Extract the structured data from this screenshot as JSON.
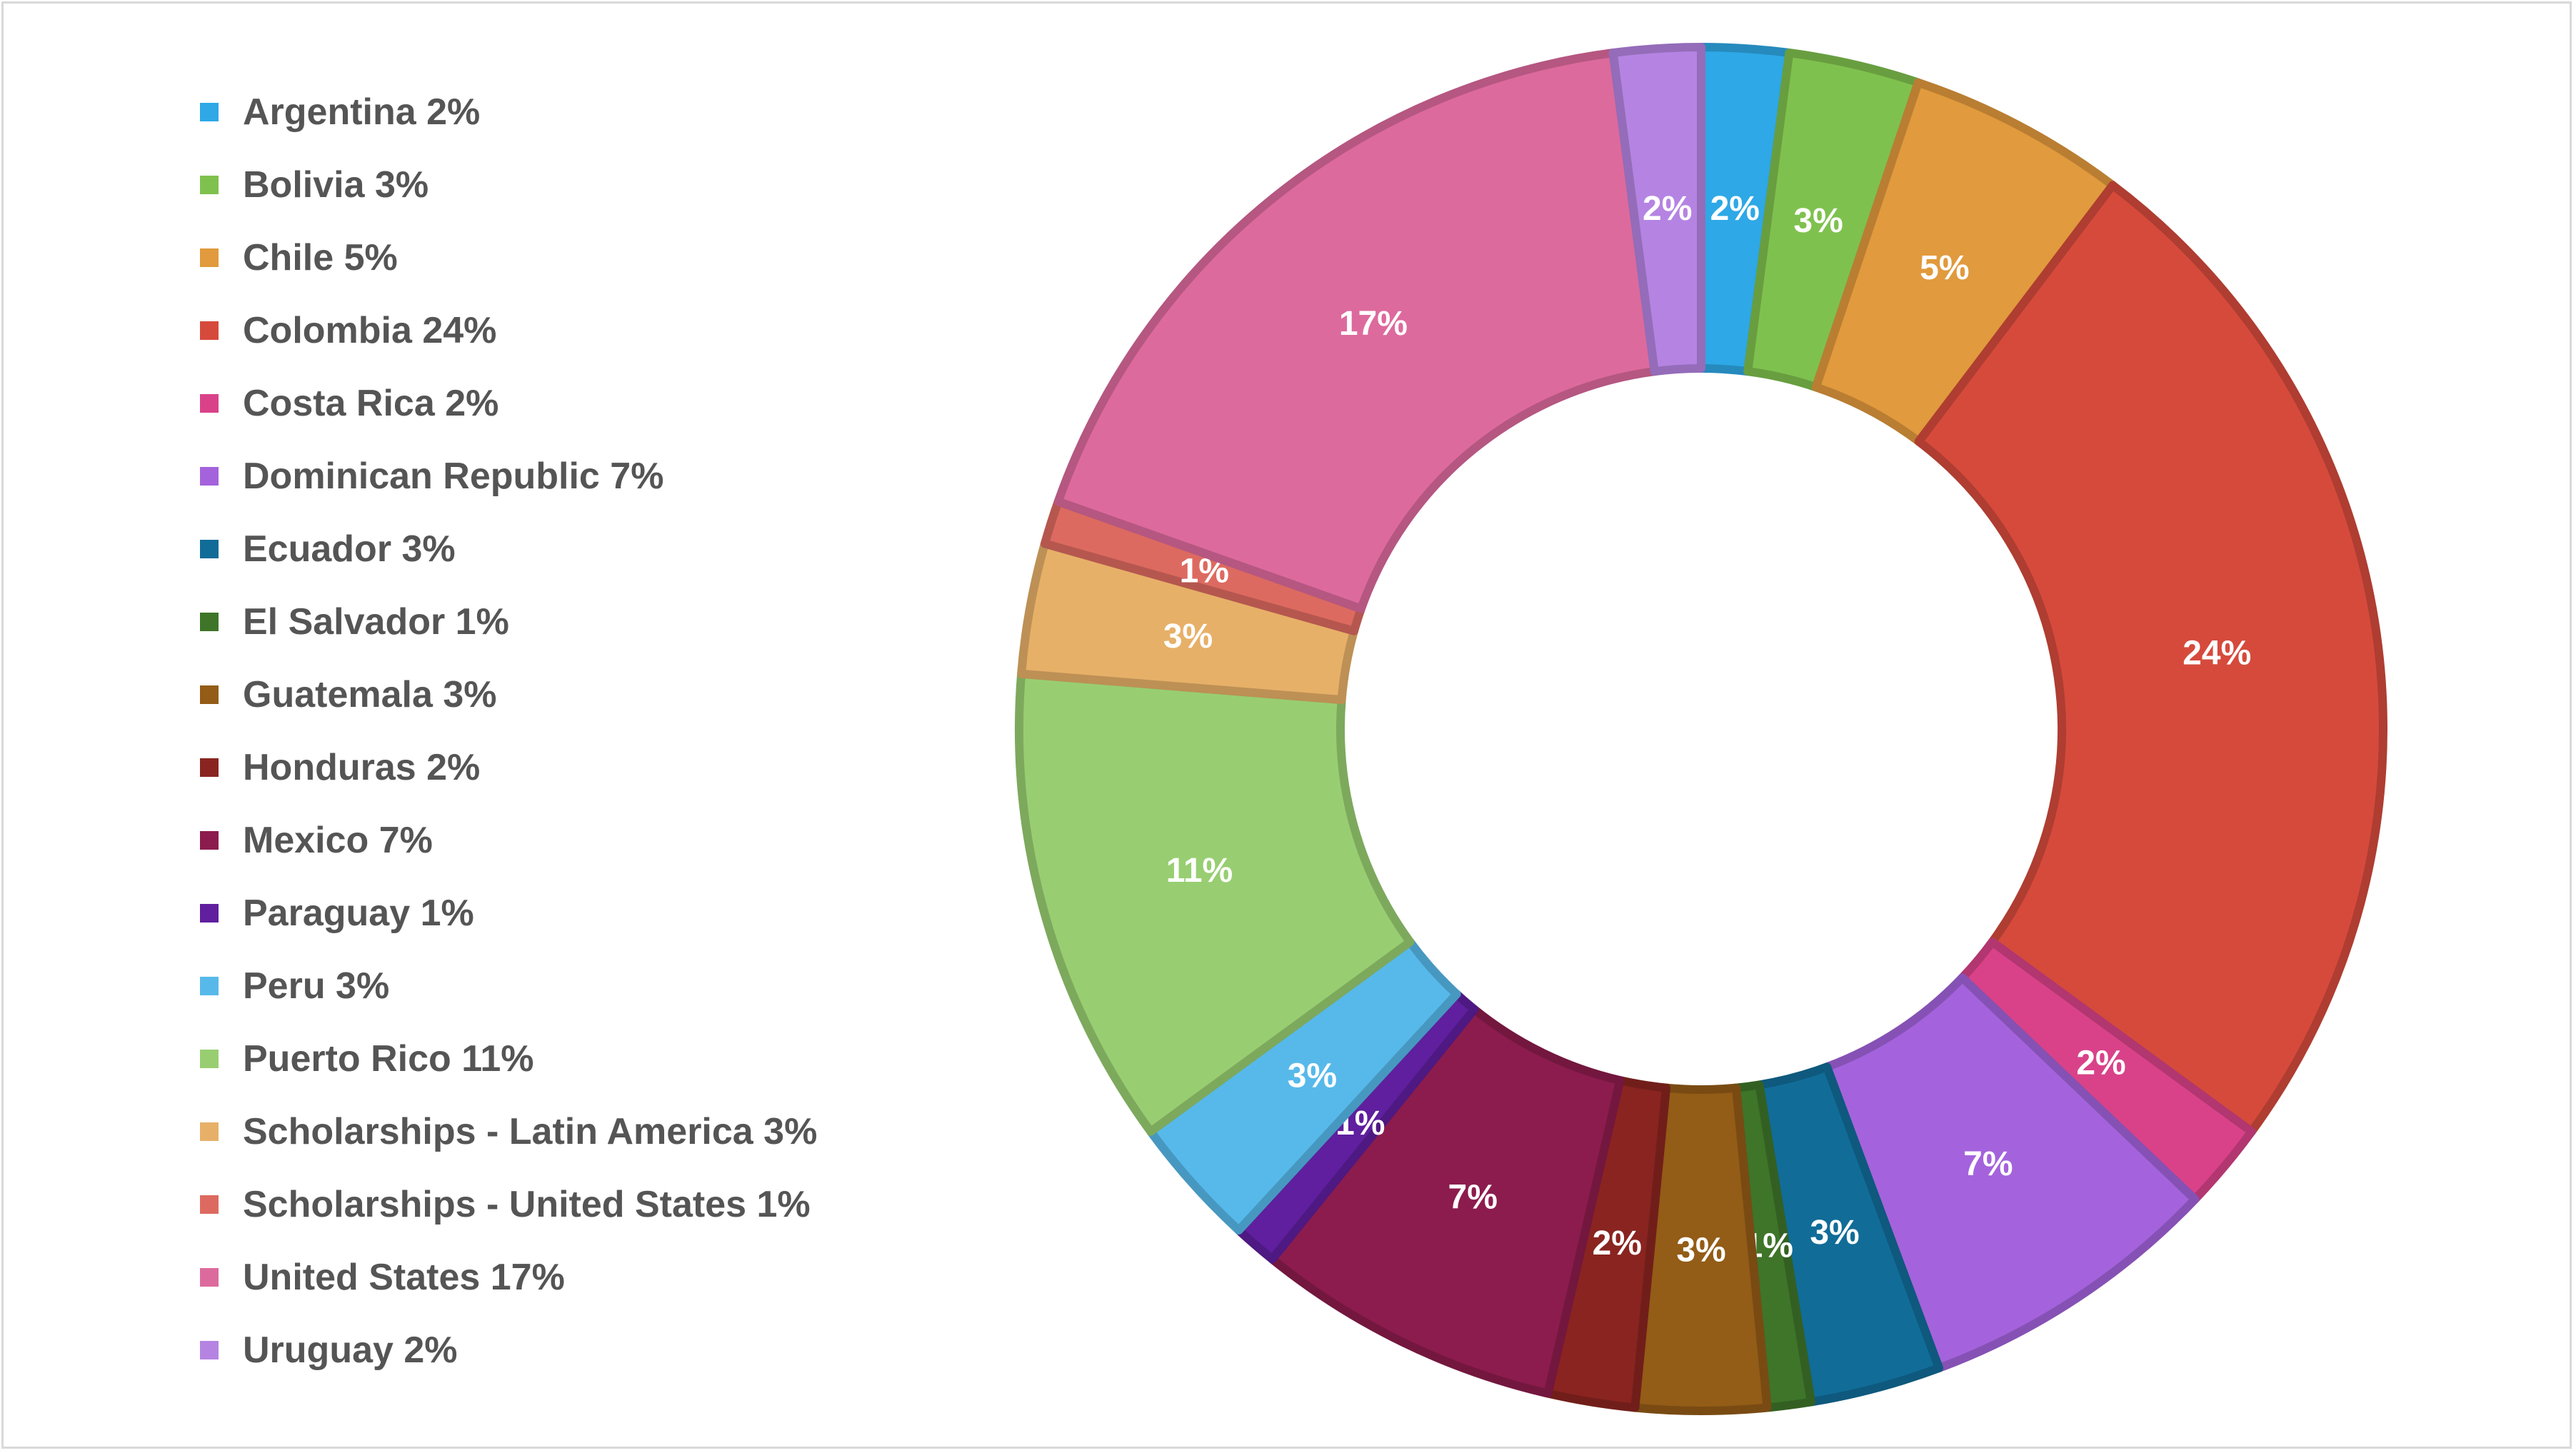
{
  "chart_data": {
    "type": "pie",
    "donut": true,
    "legend_position": "left",
    "slices": [
      {
        "label": "Argentina",
        "value": 2,
        "text": "2%",
        "color": "#2ea8e6"
      },
      {
        "label": "Bolivia",
        "value": 3,
        "text": "3%",
        "color": "#7fc14e"
      },
      {
        "label": "Chile",
        "value": 5,
        "text": "5%",
        "color": "#e19a3d"
      },
      {
        "label": "Colombia",
        "value": 24,
        "text": "24%",
        "color": "#d64a3c"
      },
      {
        "label": "Costa Rica",
        "value": 2,
        "text": "2%",
        "color": "#d94289"
      },
      {
        "label": "Dominican Republic",
        "value": 7,
        "text": "7%",
        "color": "#a463dc"
      },
      {
        "label": "Ecuador",
        "value": 3,
        "text": "3%",
        "color": "#116c98"
      },
      {
        "label": "El Salvador",
        "value": 1,
        "text": "1%",
        "color": "#3e7529"
      },
      {
        "label": "Guatemala",
        "value": 3,
        "text": "3%",
        "color": "#935c17"
      },
      {
        "label": "Honduras",
        "value": 2,
        "text": "2%",
        "color": "#8a2420"
      },
      {
        "label": "Mexico",
        "value": 7,
        "text": "7%",
        "color": "#8c1c4d"
      },
      {
        "label": "Paraguay",
        "value": 1,
        "text": "1%",
        "color": "#5f1f9e"
      },
      {
        "label": "Peru",
        "value": 3,
        "text": "3%",
        "color": "#57b9ea"
      },
      {
        "label": "Puerto Rico",
        "value": 11,
        "text": "11%",
        "color": "#98ce71"
      },
      {
        "label": "Scholarships - Latin America",
        "value": 3,
        "text": "3%",
        "color": "#e7b068"
      },
      {
        "label": "Scholarships - United States",
        "value": 1,
        "text": "1%",
        "color": "#dd6a60"
      },
      {
        "label": "United States",
        "value": 17,
        "text": "17%",
        "color": "#dd6a9d"
      },
      {
        "label": "Uruguay",
        "value": 2,
        "text": "2%",
        "color": "#b584e2"
      }
    ],
    "legend_entries": [
      "Argentina 2%",
      "Bolivia 3%",
      "Chile 5%",
      "Colombia 24%",
      "Costa Rica 2%",
      "Dominican Republic 7%",
      "Ecuador 3%",
      "El Salvador 1%",
      "Guatemala 3%",
      "Honduras 2%",
      "Mexico 7%",
      "Paraguay 1%",
      "Peru 3%",
      "Puerto Rico 11%",
      "Scholarships - Latin America 3%",
      "Scholarships - United States 1%",
      "United States 17%",
      "Uruguay 2%"
    ]
  }
}
